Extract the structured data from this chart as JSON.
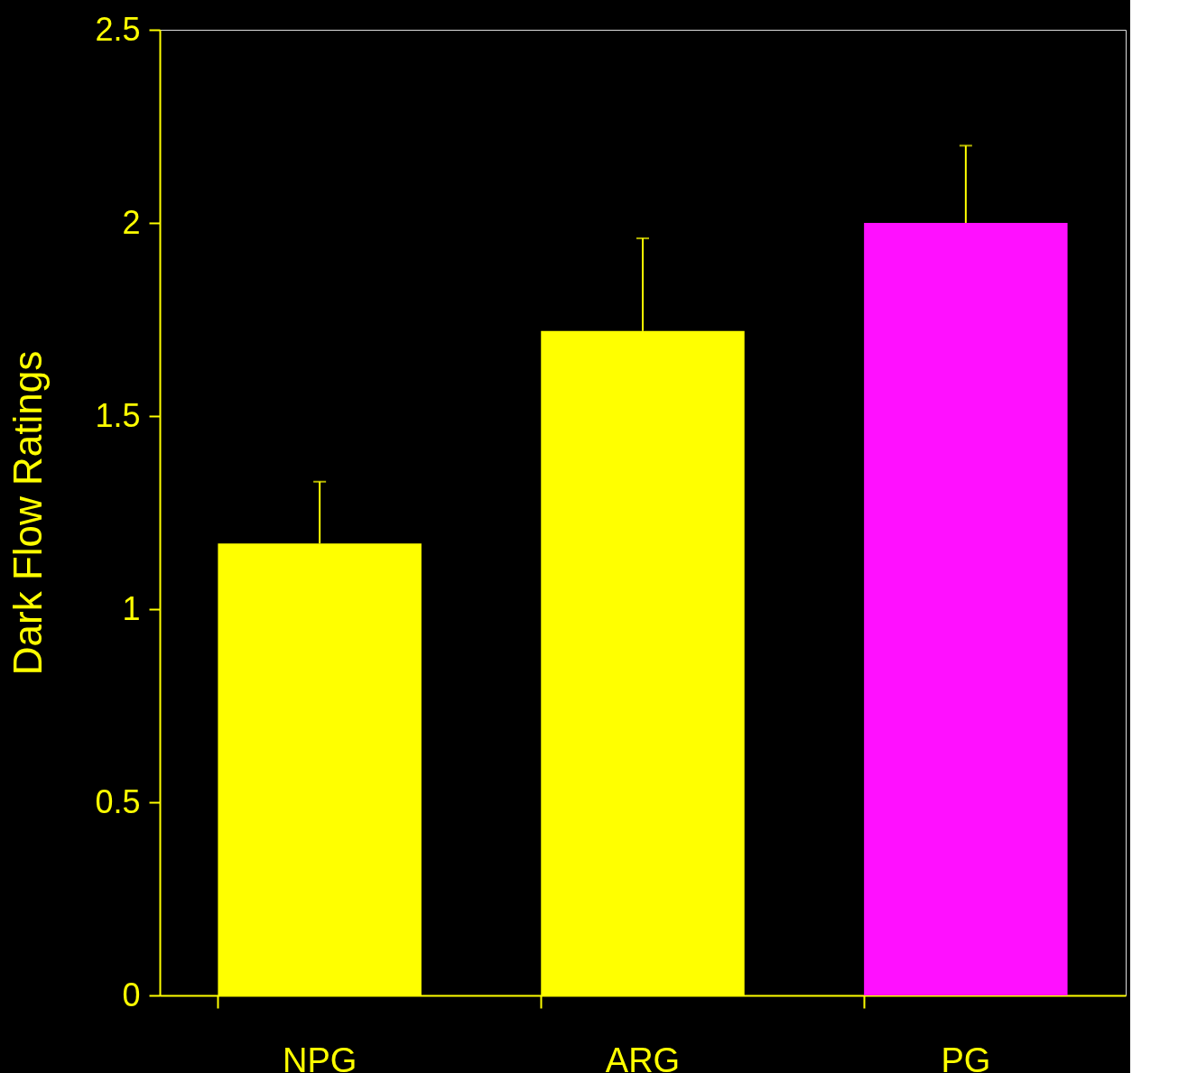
{
  "chart_data": {
    "type": "bar",
    "ylabel": "Dark Flow Ratings",
    "categories": [
      "NPG",
      "ARG",
      "PG"
    ],
    "values": [
      1.17,
      1.72,
      2.0
    ],
    "colors": [
      "#ffff00",
      "#ffff00",
      "#ff10ff"
    ],
    "errors": [
      [
        1.17,
        1.33
      ],
      [
        1.72,
        1.96
      ],
      [
        2.0,
        2.2
      ]
    ],
    "ylim": [
      0,
      2.5
    ],
    "yticks": [
      0,
      0.5,
      1,
      1.5,
      2,
      2.5
    ],
    "grid": false,
    "legend": false
  }
}
